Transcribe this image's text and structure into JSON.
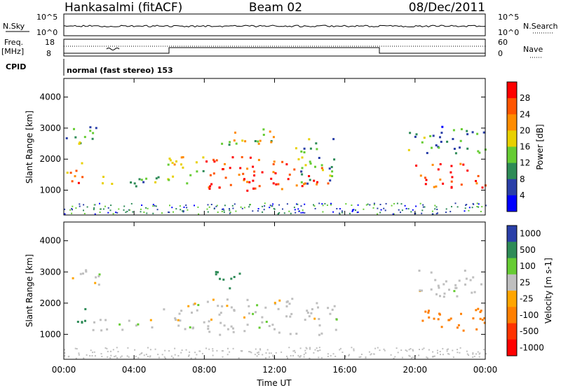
{
  "header": {
    "station": "Hankasalmi (fitACF)",
    "beam": "Beam 02",
    "date": "08/Dec/2011"
  },
  "noise_panel": {
    "left_label": "N.Sky",
    "right_label": "N.Search",
    "left_ticks": [
      "10^5",
      "10^0"
    ],
    "right_ticks": [
      "10^5",
      "10^0"
    ]
  },
  "freq_panel": {
    "left_label_1": "Freq.",
    "left_label_2": "[MHz]",
    "left_label_3": "CPID",
    "left_ticks": [
      "18",
      "8"
    ],
    "right_label": "Nave",
    "right_ticks": [
      "60",
      "0"
    ]
  },
  "mode_text": "normal (fast stereo) 153",
  "x_axis": {
    "title": "Time UT",
    "ticks": [
      "00:00",
      "04:00",
      "08:00",
      "12:00",
      "16:00",
      "20:00",
      "00:00"
    ]
  },
  "colors": {
    "power": [
      "#0000ff",
      "#2a3fa8",
      "#2e8b57",
      "#66cc33",
      "#e8d000",
      "#ff8c00",
      "#ff5500",
      "#ff0000"
    ],
    "velocity": [
      "#2a3fa8",
      "#2e8b57",
      "#66cc33",
      "#bfbfbf",
      "#ffa500",
      "#ff7f00",
      "#ff3300",
      "#ff0000"
    ],
    "ground": "#bfbfbf"
  },
  "chart_data": [
    {
      "type": "heatmap",
      "title": "Power",
      "xlabel": "",
      "ylabel": "Slant Range [km]",
      "x_range_hours": [
        0,
        24
      ],
      "ylim": [
        200,
        4600
      ],
      "y_ticks": [
        1000,
        2000,
        3000,
        4000
      ],
      "colorbar": {
        "label": "Power [dB]",
        "tick_labels": [
          "4",
          "8",
          "12",
          "16",
          "20",
          "24",
          "28"
        ],
        "bounds": [
          0,
          32
        ]
      },
      "regions": [
        {
          "t0": 0.0,
          "t1": 1.2,
          "r0": 1200,
          "r1": 2000,
          "value": 25
        },
        {
          "t0": 0.0,
          "t1": 2.0,
          "r0": 2500,
          "r1": 3200,
          "value": 12
        },
        {
          "t0": 1.5,
          "t1": 5.5,
          "r0": 1100,
          "r1": 1500,
          "value": 14
        },
        {
          "t0": 5.5,
          "t1": 8.0,
          "r0": 1200,
          "r1": 2100,
          "value": 16
        },
        {
          "t0": 8.0,
          "t1": 15.0,
          "r0": 1000,
          "r1": 2100,
          "value": 28
        },
        {
          "t0": 8.5,
          "t1": 12.0,
          "r0": 2400,
          "r1": 3000,
          "value": 18
        },
        {
          "t0": 13.0,
          "t1": 15.5,
          "r0": 1200,
          "r1": 2700,
          "value": 12
        },
        {
          "t0": 20.0,
          "t1": 24.0,
          "r0": 1100,
          "r1": 1900,
          "value": 28
        },
        {
          "t0": 19.5,
          "t1": 24.0,
          "r0": 2200,
          "r1": 3100,
          "value": 10
        }
      ]
    },
    {
      "type": "heatmap",
      "title": "Velocity",
      "xlabel": "Time UT",
      "ylabel": "Slant Range [km]",
      "x_range_hours": [
        0,
        24
      ],
      "ylim": [
        200,
        4600
      ],
      "y_ticks": [
        1000,
        2000,
        3000,
        4000
      ],
      "colorbar": {
        "label": "Velocity [m s-1]",
        "tick_labels": [
          "1000",
          "500",
          "100",
          "25",
          "-25",
          "-100",
          "-500",
          "-1000"
        ],
        "bounds": [
          -1000,
          1000
        ]
      },
      "regions": [
        {
          "t0": 0.0,
          "t1": 2.0,
          "r0": 2600,
          "r1": 3200,
          "value": 0
        },
        {
          "t0": 1.5,
          "t1": 5.5,
          "r0": 1100,
          "r1": 1500,
          "value": 0
        },
        {
          "t0": 5.5,
          "t1": 8.0,
          "r0": 1200,
          "r1": 2100,
          "value": 0
        },
        {
          "t0": 8.0,
          "t1": 15.5,
          "r0": 1000,
          "r1": 2200,
          "value": 0
        },
        {
          "t0": 0.5,
          "t1": 1.4,
          "r0": 1300,
          "r1": 1900,
          "value": 150
        },
        {
          "t0": 8.5,
          "t1": 10.0,
          "r0": 2400,
          "r1": 3100,
          "value": 150
        },
        {
          "t0": 20.0,
          "t1": 24.0,
          "r0": 1100,
          "r1": 1900,
          "value": -300
        },
        {
          "t0": 20.0,
          "t1": 24.0,
          "r0": 2200,
          "r1": 3100,
          "value": 0
        }
      ]
    }
  ]
}
